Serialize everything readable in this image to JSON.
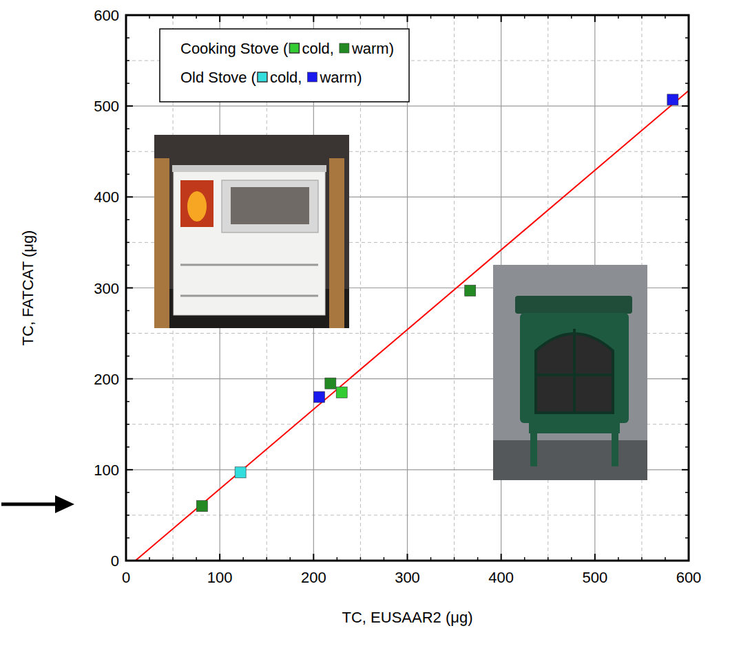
{
  "chart_data": {
    "type": "scatter",
    "x_label": "TC, EUSAAR2 (μg)",
    "y_label": "TC, FATCAT (μg)",
    "xlim": [
      0,
      600
    ],
    "ylim": [
      0,
      600
    ],
    "xticks": [
      0,
      100,
      200,
      300,
      400,
      500,
      600
    ],
    "yticks": [
      0,
      100,
      200,
      300,
      400,
      500,
      600
    ],
    "grid": true,
    "legend": "top",
    "legend_punctuation": [
      "(",
      ",",
      ")"
    ],
    "groups": [
      {
        "label": "Cooking Stove",
        "series": [
          0,
          1
        ]
      },
      {
        "label": "Old Stove",
        "series": [
          2,
          3
        ]
      }
    ],
    "series": [
      {
        "name": "cold",
        "color": "#33cc33",
        "marker": "square",
        "x": [
          230
        ],
        "values": [
          185
        ]
      },
      {
        "name": "warm",
        "color": "#238a23",
        "marker": "square",
        "x": [
          81,
          218,
          367
        ],
        "values": [
          60,
          195,
          297
        ]
      },
      {
        "name": "cold",
        "color": "#33dddd",
        "marker": "square",
        "x": [
          122
        ],
        "values": [
          97
        ]
      },
      {
        "name": "warm",
        "color": "#1a1aee",
        "marker": "square",
        "x": [
          206,
          583
        ],
        "values": [
          180,
          507
        ]
      },
      {
        "type": "line",
        "color": "#ff0000",
        "line_style": "solid",
        "x": [
          10,
          600
        ],
        "values": [
          0,
          517
        ]
      }
    ]
  }
}
